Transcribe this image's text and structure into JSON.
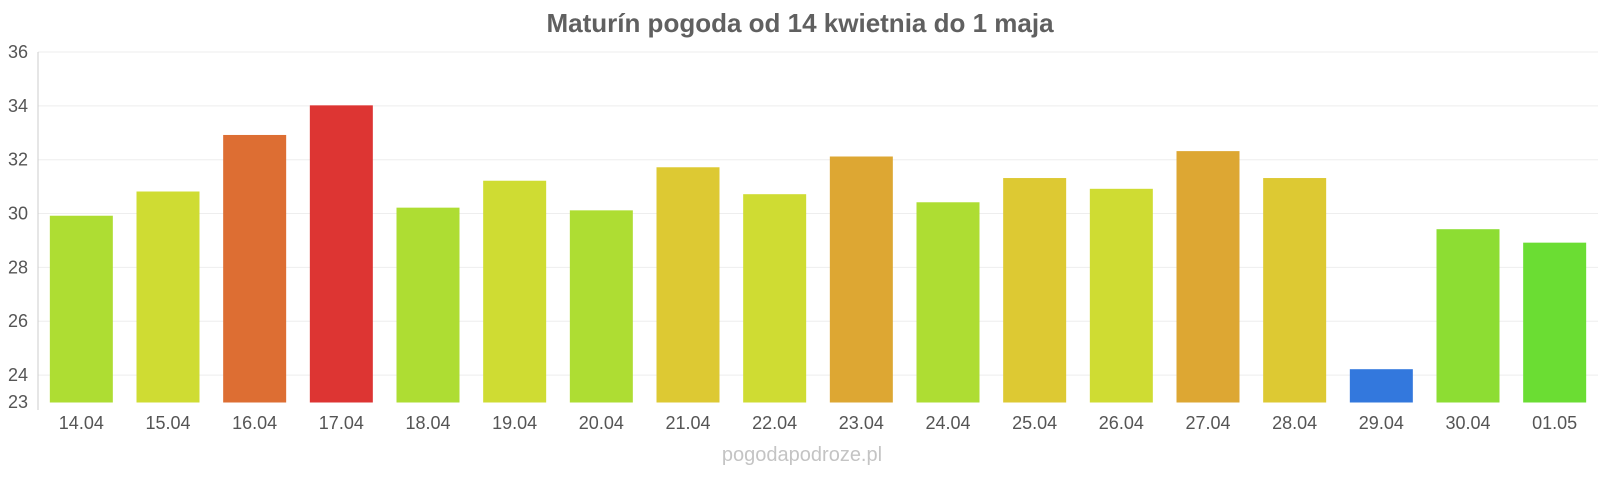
{
  "chart_data": {
    "type": "bar",
    "title": "Maturín pogoda od 14 kwietnia do 1 maja",
    "xlabel": "",
    "ylabel": "",
    "ylim": [
      23,
      36
    ],
    "yticks": [
      23,
      24,
      26,
      28,
      30,
      32,
      34,
      36
    ],
    "grid": true,
    "legend": "none",
    "categories": [
      "14.04",
      "15.04",
      "16.04",
      "17.04",
      "18.04",
      "19.04",
      "20.04",
      "21.04",
      "22.04",
      "23.04",
      "24.04",
      "25.04",
      "26.04",
      "27.04",
      "28.04",
      "29.04",
      "30.04",
      "01.05"
    ],
    "values": [
      29.9,
      30.8,
      32.9,
      34.0,
      30.2,
      31.2,
      30.1,
      31.7,
      30.7,
      32.1,
      30.4,
      31.3,
      30.9,
      32.3,
      31.3,
      24.2,
      29.4,
      28.9
    ],
    "colors": [
      "#aedd33",
      "#cfdc33",
      "#dd6e33",
      "#dd3533",
      "#aedd33",
      "#cfdc33",
      "#aedd33",
      "#ddc933",
      "#cfdc33",
      "#dda733",
      "#aedd33",
      "#ddc933",
      "#cfdc33",
      "#dda733",
      "#ddc933",
      "#3378dd",
      "#8ddd33",
      "#6bdd33"
    ]
  },
  "footer": {
    "credit": "pogodapodroze.pl"
  }
}
